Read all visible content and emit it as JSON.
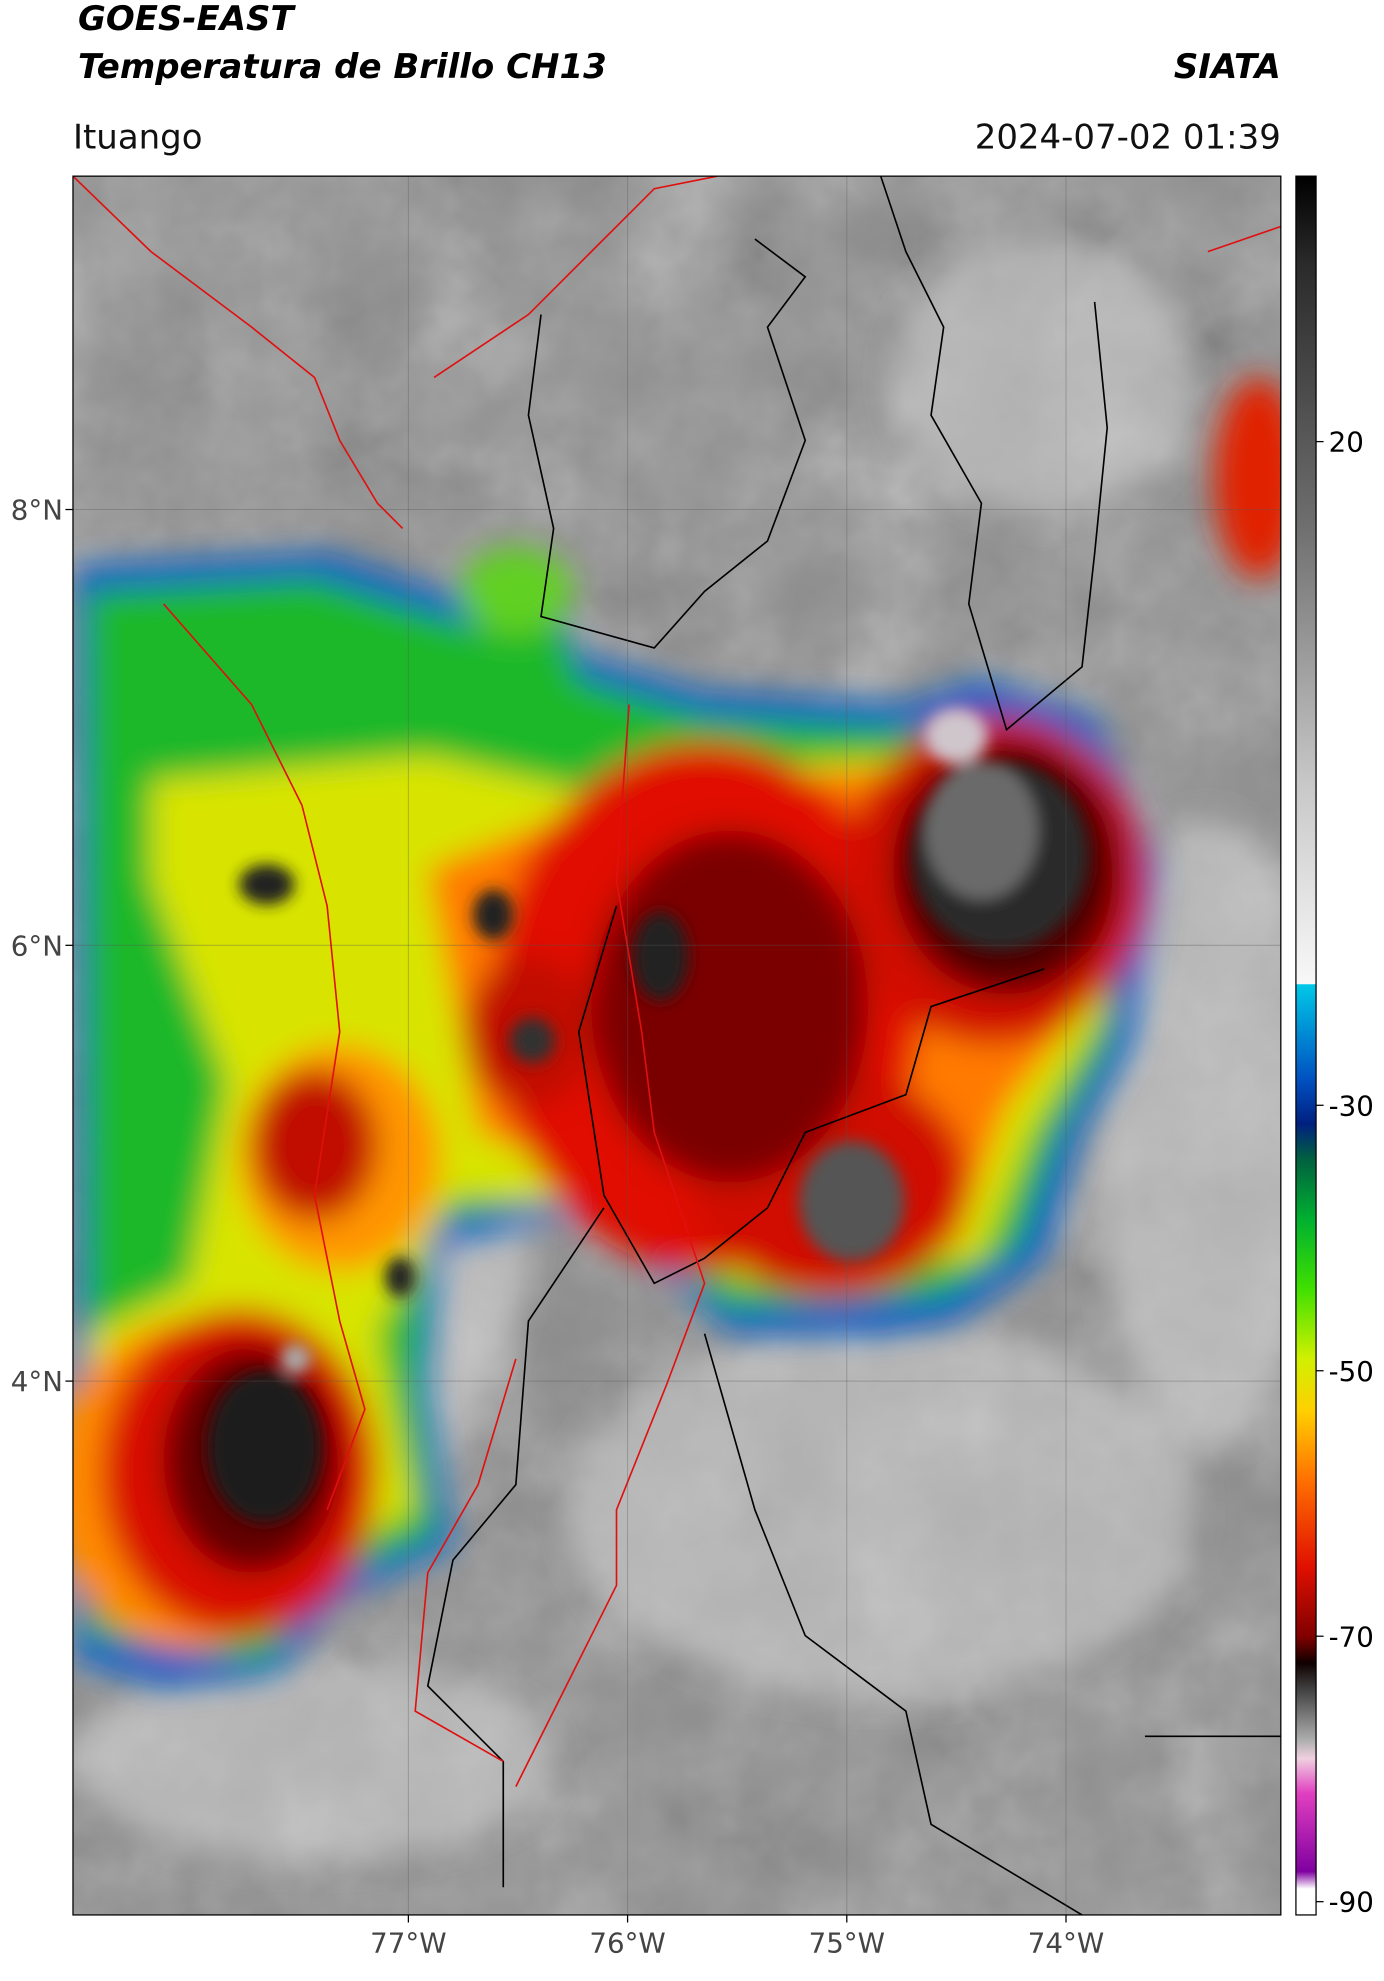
{
  "header": {
    "title_line1": "GOES-EAST",
    "title_line2": "Temperatura de Brillo CH13",
    "agency": "SIATA",
    "location": "Ituango",
    "datetime": "2024-07-02 01:39"
  },
  "map": {
    "xlim": [
      -78.53,
      -73.02
    ],
    "ylim": [
      1.55,
      9.53
    ],
    "xticks": [
      {
        "value": -77,
        "label": "77°W"
      },
      {
        "value": -76,
        "label": "76°W"
      },
      {
        "value": -75,
        "label": "75°W"
      },
      {
        "value": -74,
        "label": "74°W"
      }
    ],
    "yticks": [
      {
        "value": 8,
        "label": "8°N"
      },
      {
        "value": 6,
        "label": "6°N"
      },
      {
        "value": 4,
        "label": "4°N"
      }
    ],
    "grid": true
  },
  "colorbar": {
    "lim": [
      -91,
      40
    ],
    "ticks": [
      20,
      -30,
      -50,
      -70,
      -90
    ]
  }
}
